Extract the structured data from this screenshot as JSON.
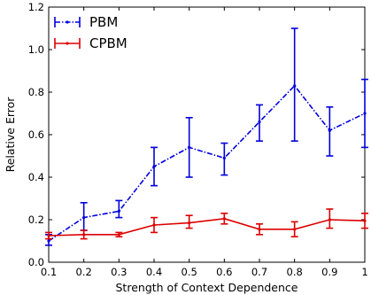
{
  "chart_data": {
    "type": "line",
    "title": "",
    "xlabel": "Strength of Context Dependence",
    "ylabel": "Relative Error",
    "xlim": [
      0.1,
      1.0
    ],
    "ylim": [
      0.0,
      1.2
    ],
    "x": [
      0.1,
      0.2,
      0.3,
      0.4,
      0.5,
      0.6,
      0.7,
      0.8,
      0.9,
      1.0
    ],
    "x_tick_labels": [
      "0.1",
      "0.2",
      "0.3",
      "0.4",
      "0.5",
      "0.6",
      "0.7",
      "0.8",
      "0.9",
      "1"
    ],
    "y_ticks": [
      0.0,
      0.2,
      0.4,
      0.6,
      0.8,
      1.0,
      1.2
    ],
    "y_tick_labels": [
      "0.0",
      "0.2",
      "0.4",
      "0.6",
      "0.8",
      "1.0",
      "1.2"
    ],
    "grid": false,
    "legend_position": "top-left",
    "series": [
      {
        "name": "PBM",
        "color": "#0000dd",
        "line_style": "dash-dot",
        "values": [
          0.1,
          0.21,
          0.24,
          0.45,
          0.54,
          0.49,
          0.66,
          0.83,
          0.62,
          0.7
        ],
        "error_low": [
          0.08,
          0.15,
          0.21,
          0.36,
          0.4,
          0.41,
          0.57,
          0.57,
          0.5,
          0.54
        ],
        "error_high": [
          0.13,
          0.28,
          0.29,
          0.54,
          0.68,
          0.56,
          0.74,
          1.1,
          0.73,
          0.86
        ]
      },
      {
        "name": "CPBM",
        "color": "#dd0000",
        "line_style": "solid",
        "values": [
          0.125,
          0.13,
          0.13,
          0.175,
          0.185,
          0.205,
          0.155,
          0.155,
          0.2,
          0.195
        ],
        "error_low": [
          0.11,
          0.11,
          0.12,
          0.14,
          0.16,
          0.18,
          0.13,
          0.12,
          0.16,
          0.16
        ],
        "error_high": [
          0.14,
          0.15,
          0.14,
          0.21,
          0.22,
          0.23,
          0.18,
          0.19,
          0.25,
          0.23
        ]
      }
    ]
  }
}
